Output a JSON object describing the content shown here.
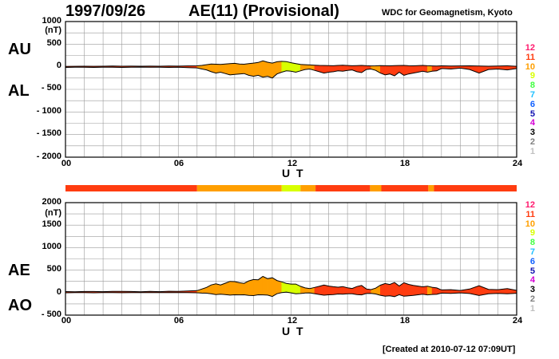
{
  "header": {
    "date": "1997/09/26",
    "title": "AE(11) (Provisional)",
    "source": "WDC for Geomagnetism, Kyoto"
  },
  "footer": {
    "created": "[Created at 2010-07-12 07:09UT]"
  },
  "activity_colors": {
    "1": "#c0c0c0",
    "2": "#808080",
    "3": "#000000",
    "4": "#d400d4",
    "5": "#1010b0",
    "6": "#1060ff",
    "7": "#20c0ff",
    "8": "#40ff40",
    "9": "#d8ff00",
    "10": "#ff9f00",
    "11": "#ff3c10",
    "12": "#ff1a6e"
  },
  "chart_data": [
    {
      "type": "area",
      "panel": "upper",
      "side_labels": [
        "AU",
        "AL"
      ],
      "yunit": "(nT)",
      "ylim": [
        -2000,
        1000
      ],
      "yticks": [
        1000,
        500,
        0,
        -500,
        -1000,
        -1500,
        -2000
      ],
      "ytick_labels": [
        "1000",
        "500",
        "0",
        "- 500",
        "- 1000",
        "- 1500",
        "- 2000"
      ],
      "xlim": [
        0,
        24
      ],
      "xticks": [
        0,
        6,
        12,
        18,
        24
      ],
      "xtick_labels": [
        "00",
        "06",
        "12",
        "18",
        "24"
      ],
      "xlabel": "U T",
      "grid": true,
      "legend_levels": [
        "12",
        "11",
        "10",
        "9",
        "8",
        "7",
        "6",
        "5",
        "4",
        "3",
        "2",
        "1"
      ],
      "series": [
        {
          "key": "AU",
          "x": [
            0,
            0.5,
            1,
            1.5,
            2,
            2.5,
            3,
            3.5,
            4,
            4.5,
            5,
            5.5,
            6,
            6.5,
            7,
            7.25,
            7.5,
            7.75,
            8,
            8.25,
            8.5,
            8.75,
            9,
            9.25,
            9.5,
            9.75,
            10,
            10.25,
            10.5,
            10.75,
            11,
            11.25,
            11.5,
            11.75,
            12,
            12.25,
            12.5,
            12.75,
            13,
            13.25,
            13.5,
            13.75,
            14,
            14.25,
            14.5,
            14.75,
            15,
            15.25,
            15.5,
            15.75,
            16,
            16.25,
            16.5,
            16.75,
            17,
            17.25,
            17.5,
            17.75,
            18,
            18.25,
            18.5,
            18.75,
            19,
            19.25,
            19.5,
            19.75,
            20,
            20.5,
            21,
            21.5,
            22,
            22.5,
            23,
            23.5,
            24
          ],
          "values": [
            8,
            10,
            12,
            10,
            12,
            15,
            12,
            14,
            12,
            14,
            12,
            15,
            14,
            18,
            20,
            30,
            45,
            60,
            55,
            50,
            60,
            70,
            75,
            60,
            55,
            70,
            80,
            95,
            130,
            100,
            80,
            110,
            120,
            115,
            90,
            70,
            50,
            45,
            40,
            35,
            30,
            28,
            25,
            22,
            30,
            35,
            28,
            22,
            25,
            30,
            22,
            18,
            20,
            25,
            22,
            20,
            25,
            28,
            30,
            22,
            20,
            25,
            30,
            22,
            18,
            15,
            20,
            15,
            18,
            20,
            15,
            12,
            15,
            20,
            10
          ]
        },
        {
          "key": "AL",
          "x": [
            0,
            0.5,
            1,
            1.5,
            2,
            2.5,
            3,
            3.5,
            4,
            4.5,
            5,
            5.5,
            6,
            6.5,
            7,
            7.25,
            7.5,
            7.75,
            8,
            8.25,
            8.5,
            8.75,
            9,
            9.25,
            9.5,
            9.75,
            10,
            10.25,
            10.5,
            10.75,
            11,
            11.25,
            11.5,
            11.75,
            12,
            12.25,
            12.5,
            12.75,
            13,
            13.25,
            13.5,
            13.75,
            14,
            14.25,
            14.5,
            14.75,
            15,
            15.25,
            15.5,
            15.75,
            16,
            16.25,
            16.5,
            16.75,
            17,
            17.25,
            17.5,
            17.75,
            18,
            18.25,
            18.5,
            18.75,
            19,
            19.25,
            19.5,
            19.75,
            20,
            20.5,
            21,
            21.5,
            22,
            22.5,
            23,
            23.5,
            24
          ],
          "values": [
            -15,
            -10,
            -12,
            -15,
            -10,
            -12,
            -15,
            -10,
            -8,
            -12,
            -10,
            -15,
            -12,
            -18,
            -25,
            -50,
            -70,
            -110,
            -140,
            -120,
            -150,
            -180,
            -170,
            -160,
            -150,
            -190,
            -210,
            -190,
            -230,
            -210,
            -250,
            -160,
            -120,
            -90,
            -100,
            -120,
            -90,
            -60,
            -50,
            -80,
            -110,
            -140,
            -120,
            -110,
            -90,
            -100,
            -80,
            -70,
            -110,
            -130,
            -60,
            -50,
            -80,
            -140,
            -180,
            -160,
            -200,
            -120,
            -190,
            -160,
            -140,
            -120,
            -100,
            -120,
            -100,
            -90,
            -40,
            -50,
            -30,
            -60,
            -140,
            -60,
            -50,
            -70,
            -40
          ]
        }
      ]
    },
    {
      "type": "bar",
      "panel": "activity-strip",
      "description": "AE activity level per segment",
      "segments": [
        {
          "start": 0,
          "end": 7,
          "level": 11
        },
        {
          "start": 7,
          "end": 11.5,
          "level": 10
        },
        {
          "start": 11.5,
          "end": 12.5,
          "level": 9
        },
        {
          "start": 12.5,
          "end": 13.3,
          "level": 10
        },
        {
          "start": 13.3,
          "end": 16.2,
          "level": 11
        },
        {
          "start": 16.2,
          "end": 16.8,
          "level": 10
        },
        {
          "start": 16.8,
          "end": 19.3,
          "level": 11
        },
        {
          "start": 19.3,
          "end": 19.6,
          "level": 10
        },
        {
          "start": 19.6,
          "end": 24,
          "level": 11
        }
      ]
    },
    {
      "type": "area",
      "panel": "lower",
      "side_labels": [
        "AE",
        "AO"
      ],
      "yunit": "(nT)",
      "ylim": [
        -500,
        2000
      ],
      "yticks": [
        2000,
        1500,
        1000,
        500,
        0,
        -500
      ],
      "ytick_labels": [
        "2000",
        "1500",
        "1000",
        "500",
        "0",
        "- 500"
      ],
      "xlim": [
        0,
        24
      ],
      "xticks": [
        0,
        6,
        12,
        18,
        24
      ],
      "xtick_labels": [
        "00",
        "06",
        "12",
        "18",
        "24"
      ],
      "xlabel": "U T",
      "grid": true,
      "legend_levels": [
        "12",
        "11",
        "10",
        "9",
        "8",
        "7",
        "6",
        "5",
        "4",
        "3",
        "2",
        "1"
      ],
      "series": [
        {
          "key": "AE",
          "x": [
            0,
            0.5,
            1,
            1.5,
            2,
            2.5,
            3,
            3.5,
            4,
            4.5,
            5,
            5.5,
            6,
            6.5,
            7,
            7.25,
            7.5,
            7.75,
            8,
            8.25,
            8.5,
            8.75,
            9,
            9.25,
            9.5,
            9.75,
            10,
            10.25,
            10.5,
            10.75,
            11,
            11.25,
            11.5,
            11.75,
            12,
            12.25,
            12.5,
            12.75,
            13,
            13.25,
            13.5,
            13.75,
            14,
            14.25,
            14.5,
            14.75,
            15,
            15.25,
            15.5,
            15.75,
            16,
            16.25,
            16.5,
            16.75,
            17,
            17.25,
            17.5,
            17.75,
            18,
            18.25,
            18.5,
            18.75,
            19,
            19.25,
            19.5,
            19.75,
            20,
            20.5,
            21,
            21.5,
            22,
            22.5,
            23,
            23.5,
            24
          ],
          "values": [
            23,
            20,
            24,
            25,
            22,
            27,
            27,
            24,
            20,
            26,
            22,
            30,
            26,
            36,
            45,
            80,
            115,
            170,
            195,
            170,
            210,
            250,
            245,
            220,
            205,
            260,
            290,
            285,
            360,
            310,
            330,
            270,
            240,
            205,
            190,
            190,
            140,
            105,
            90,
            115,
            140,
            168,
            145,
            132,
            120,
            135,
            108,
            92,
            135,
            160,
            82,
            68,
            100,
            165,
            202,
            180,
            225,
            148,
            220,
            182,
            160,
            145,
            130,
            142,
            118,
            105,
            60,
            65,
            48,
            80,
            155,
            72,
            65,
            90,
            50
          ]
        },
        {
          "key": "AO",
          "x": [
            0,
            0.5,
            1,
            1.5,
            2,
            2.5,
            3,
            3.5,
            4,
            4.5,
            5,
            5.5,
            6,
            6.5,
            7,
            7.25,
            7.5,
            7.75,
            8,
            8.25,
            8.5,
            8.75,
            9,
            9.25,
            9.5,
            9.75,
            10,
            10.25,
            10.5,
            10.75,
            11,
            11.25,
            11.5,
            11.75,
            12,
            12.25,
            12.5,
            12.75,
            13,
            13.25,
            13.5,
            13.75,
            14,
            14.25,
            14.5,
            14.75,
            15,
            15.25,
            15.5,
            15.75,
            16,
            16.25,
            16.5,
            16.75,
            17,
            17.25,
            17.5,
            17.75,
            18,
            18.25,
            18.5,
            18.75,
            19,
            19.25,
            19.5,
            19.75,
            20,
            20.5,
            21,
            21.5,
            22,
            22.5,
            23,
            23.5,
            24
          ],
          "values": [
            -4,
            0,
            0,
            -3,
            1,
            2,
            -2,
            2,
            2,
            1,
            1,
            0,
            1,
            0,
            -3,
            -10,
            -13,
            -25,
            -43,
            -35,
            -45,
            -55,
            -48,
            -50,
            -48,
            -60,
            -65,
            -48,
            -50,
            -55,
            -85,
            -25,
            0,
            13,
            -5,
            -25,
            -20,
            -8,
            -5,
            -23,
            -40,
            -56,
            -48,
            -44,
            -30,
            -33,
            -26,
            -24,
            -43,
            -50,
            -19,
            -16,
            -30,
            -58,
            -79,
            -70,
            -88,
            -46,
            -80,
            -69,
            -60,
            -48,
            -35,
            -49,
            -41,
            -38,
            -10,
            -18,
            -6,
            -20,
            -63,
            -24,
            -18,
            -25,
            -15
          ]
        }
      ]
    }
  ]
}
